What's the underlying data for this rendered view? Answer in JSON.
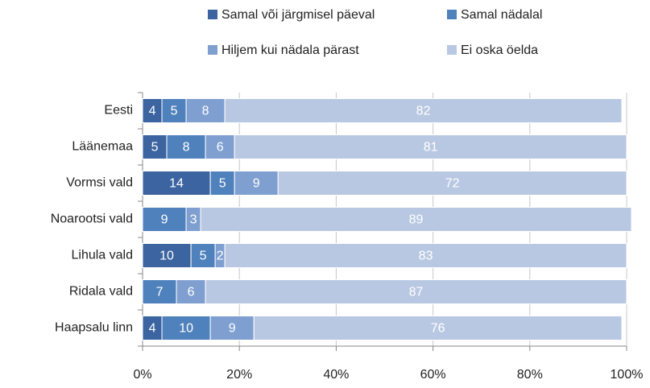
{
  "chart_data": {
    "type": "stacked_barh",
    "categories": [
      "Eesti",
      "Läänemaa",
      "Vormsi vald",
      "Noarootsi vald",
      "Lihula vald",
      "Ridala vald",
      "Haapsalu linn"
    ],
    "series": [
      {
        "name": "Samal või järgmisel päeval",
        "color": "#3b64a0",
        "values": [
          4,
          5,
          14,
          null,
          10,
          null,
          4
        ]
      },
      {
        "name": "Samal nädalal",
        "color": "#4f81bd",
        "values": [
          5,
          8,
          5,
          9,
          5,
          7,
          10
        ]
      },
      {
        "name": "Hiljem kui nädala pärast",
        "color": "#7f9fd0",
        "values": [
          8,
          6,
          9,
          3,
          2,
          6,
          9
        ]
      },
      {
        "name": "Ei oska öelda",
        "color": "#b9c8e2",
        "values": [
          82,
          81,
          72,
          89,
          83,
          87,
          76
        ]
      }
    ],
    "xlim": [
      0,
      100
    ],
    "xticks": [
      {
        "value": 0,
        "label": "0%"
      },
      {
        "value": 20,
        "label": "20%"
      },
      {
        "value": 40,
        "label": "40%"
      },
      {
        "value": 60,
        "label": "60%"
      },
      {
        "value": 80,
        "label": "80%"
      },
      {
        "value": 100,
        "label": "100%"
      }
    ],
    "grid": true,
    "legend": "top"
  }
}
